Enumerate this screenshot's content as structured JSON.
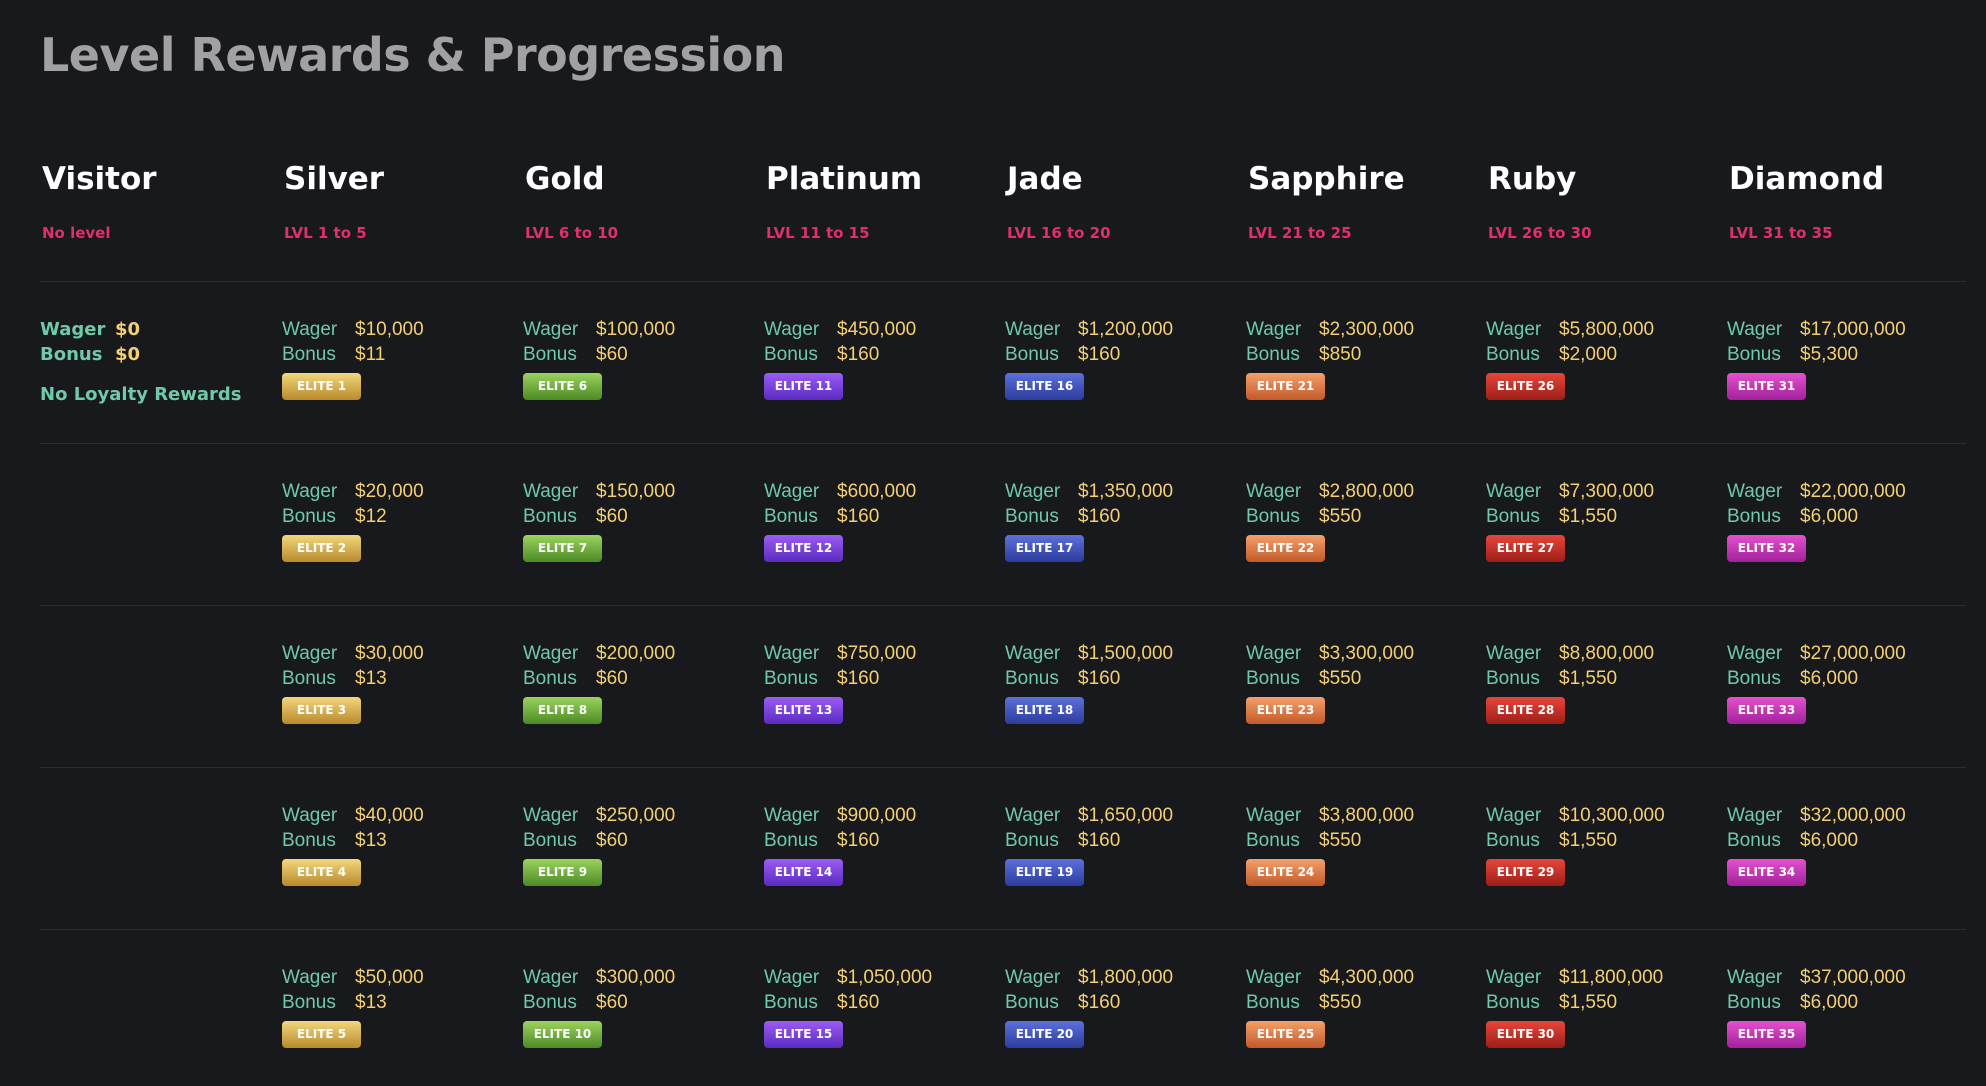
{
  "page": {
    "title": "Level Rewards & Progression"
  },
  "visitor": {
    "name": "Visitor",
    "range": "No level",
    "wager_label": "Wager",
    "wager": "$0",
    "bonus_label": "Bonus",
    "bonus": "$0",
    "note": "No Loyalty Rewards"
  },
  "labels": {
    "wager": "Wager",
    "bonus": "Bonus"
  },
  "tiers": [
    {
      "name": "Silver",
      "range": "LVL 1 to 5",
      "badge_colors": [
        "#f3d77c",
        "#b88a2c"
      ],
      "levels": [
        {
          "wager": "$10,000",
          "bonus": "$11",
          "badge": "ELITE 1"
        },
        {
          "wager": "$20,000",
          "bonus": "$12",
          "badge": "ELITE 2"
        },
        {
          "wager": "$30,000",
          "bonus": "$13",
          "badge": "ELITE 3"
        },
        {
          "wager": "$40,000",
          "bonus": "$13",
          "badge": "ELITE 4"
        },
        {
          "wager": "$50,000",
          "bonus": "$13",
          "badge": "ELITE 5"
        }
      ]
    },
    {
      "name": "Gold",
      "range": "LVL 6 to 10",
      "badge_colors": [
        "#9bd35d",
        "#4d8a26"
      ],
      "levels": [
        {
          "wager": "$100,000",
          "bonus": "$60",
          "badge": "ELITE 6"
        },
        {
          "wager": "$150,000",
          "bonus": "$60",
          "badge": "ELITE 7"
        },
        {
          "wager": "$200,000",
          "bonus": "$60",
          "badge": "ELITE 8"
        },
        {
          "wager": "$250,000",
          "bonus": "$60",
          "badge": "ELITE 9"
        },
        {
          "wager": "$300,000",
          "bonus": "$60",
          "badge": "ELITE 10"
        }
      ]
    },
    {
      "name": "Platinum",
      "range": "LVL 11 to 15",
      "badge_colors": [
        "#9b5cf5",
        "#5a2bc0"
      ],
      "levels": [
        {
          "wager": "$450,000",
          "bonus": "$160",
          "badge": "ELITE 11"
        },
        {
          "wager": "$600,000",
          "bonus": "$160",
          "badge": "ELITE 12"
        },
        {
          "wager": "$750,000",
          "bonus": "$160",
          "badge": "ELITE 13"
        },
        {
          "wager": "$900,000",
          "bonus": "$160",
          "badge": "ELITE 14"
        },
        {
          "wager": "$1,050,000",
          "bonus": "$160",
          "badge": "ELITE 15"
        }
      ]
    },
    {
      "name": "Jade",
      "range": "LVL 16 to 20",
      "badge_colors": [
        "#5c70dc",
        "#2c3c9c"
      ],
      "levels": [
        {
          "wager": "$1,200,000",
          "bonus": "$160",
          "badge": "ELITE 16"
        },
        {
          "wager": "$1,350,000",
          "bonus": "$160",
          "badge": "ELITE 17"
        },
        {
          "wager": "$1,500,000",
          "bonus": "$160",
          "badge": "ELITE 18"
        },
        {
          "wager": "$1,650,000",
          "bonus": "$160",
          "badge": "ELITE 19"
        },
        {
          "wager": "$1,800,000",
          "bonus": "$160",
          "badge": "ELITE 20"
        }
      ]
    },
    {
      "name": "Sapphire",
      "range": "LVL 21 to 25",
      "badge_colors": [
        "#f4a06a",
        "#c25a2a"
      ],
      "levels": [
        {
          "wager": "$2,300,000",
          "bonus": "$850",
          "badge": "ELITE 21"
        },
        {
          "wager": "$2,800,000",
          "bonus": "$550",
          "badge": "ELITE 22"
        },
        {
          "wager": "$3,300,000",
          "bonus": "$550",
          "badge": "ELITE 23"
        },
        {
          "wager": "$3,800,000",
          "bonus": "$550",
          "badge": "ELITE 24"
        },
        {
          "wager": "$4,300,000",
          "bonus": "$550",
          "badge": "ELITE 25"
        }
      ]
    },
    {
      "name": "Ruby",
      "range": "LVL 26 to 30",
      "badge_colors": [
        "#e8453a",
        "#9c1f18"
      ],
      "levels": [
        {
          "wager": "$5,800,000",
          "bonus": "$2,000",
          "badge": "ELITE 26"
        },
        {
          "wager": "$7,300,000",
          "bonus": "$1,550",
          "badge": "ELITE 27"
        },
        {
          "wager": "$8,800,000",
          "bonus": "$1,550",
          "badge": "ELITE 28"
        },
        {
          "wager": "$10,300,000",
          "bonus": "$1,550",
          "badge": "ELITE 29"
        },
        {
          "wager": "$11,800,000",
          "bonus": "$1,550",
          "badge": "ELITE 30"
        }
      ]
    },
    {
      "name": "Diamond",
      "range": "LVL 31 to 35",
      "badge_colors": [
        "#e550cf",
        "#a0229a"
      ],
      "levels": [
        {
          "wager": "$17,000,000",
          "bonus": "$5,300",
          "badge": "ELITE 31"
        },
        {
          "wager": "$22,000,000",
          "bonus": "$6,000",
          "badge": "ELITE 32"
        },
        {
          "wager": "$27,000,000",
          "bonus": "$6,000",
          "badge": "ELITE 33"
        },
        {
          "wager": "$32,000,000",
          "bonus": "$6,000",
          "badge": "ELITE 34"
        },
        {
          "wager": "$37,000,000",
          "bonus": "$6,000",
          "badge": "ELITE 35"
        }
      ]
    }
  ]
}
